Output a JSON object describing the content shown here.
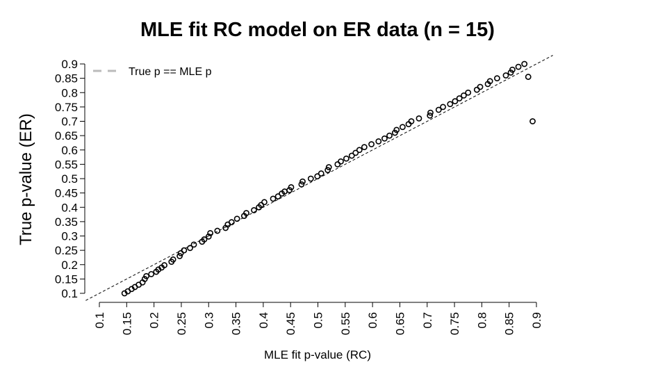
{
  "chart_data": {
    "type": "scatter",
    "title": "MLE fit RC model on ER data (n = 15)",
    "xlabel": "MLE fit p-value (RC)",
    "ylabel": "True p-value (ER)",
    "xlim": [
      0.1,
      0.9
    ],
    "ylim": [
      0.1,
      0.9
    ],
    "x_ticks": [
      0.1,
      0.15,
      0.2,
      0.25,
      0.3,
      0.35,
      0.4,
      0.45,
      0.5,
      0.55,
      0.6,
      0.65,
      0.7,
      0.75,
      0.8,
      0.85,
      0.9
    ],
    "y_ticks": [
      0.1,
      0.15,
      0.2,
      0.25,
      0.3,
      0.35,
      0.4,
      0.45,
      0.5,
      0.55,
      0.6,
      0.65,
      0.7,
      0.75,
      0.8,
      0.85,
      0.9
    ],
    "x_tick_labels": [
      "0.1",
      "0.15",
      "0.2",
      "0.25",
      "0.3",
      "0.35",
      "0.4",
      "0.45",
      "0.5",
      "0.55",
      "0.6",
      "0.65",
      "0.7",
      "0.75",
      "0.8",
      "0.85",
      "0.9"
    ],
    "y_tick_labels": [
      "0.1",
      "0.15",
      "0.2",
      "0.25",
      "0.3",
      "0.35",
      "0.4",
      "0.45",
      "0.5",
      "0.55",
      "0.6",
      "0.65",
      "0.7",
      "0.75",
      "0.8",
      "0.85",
      "0.9"
    ],
    "grid": false,
    "legend": {
      "position": "top-left",
      "entries": [
        {
          "label": "True p == MLE p",
          "style": "dashed",
          "color": "#bbbbbb"
        }
      ]
    },
    "reference_line": {
      "slope": 1,
      "intercept": 0,
      "style": "dashed",
      "color": "#000000"
    },
    "points": {
      "x": [
        0.146,
        0.152,
        0.159,
        0.165,
        0.172,
        0.179,
        0.183,
        0.186,
        0.195,
        0.204,
        0.208,
        0.214,
        0.219,
        0.232,
        0.235,
        0.247,
        0.249,
        0.255,
        0.266,
        0.273,
        0.288,
        0.292,
        0.3,
        0.303,
        0.316,
        0.331,
        0.335,
        0.342,
        0.352,
        0.365,
        0.369,
        0.383,
        0.392,
        0.396,
        0.402,
        0.418,
        0.427,
        0.434,
        0.439,
        0.448,
        0.451,
        0.47,
        0.472,
        0.487,
        0.499,
        0.506,
        0.518,
        0.52,
        0.536,
        0.542,
        0.552,
        0.562,
        0.569,
        0.576,
        0.585,
        0.598,
        0.611,
        0.622,
        0.631,
        0.641,
        0.644,
        0.655,
        0.666,
        0.671,
        0.685,
        0.705,
        0.706,
        0.721,
        0.729,
        0.742,
        0.751,
        0.759,
        0.767,
        0.775,
        0.791,
        0.797,
        0.811,
        0.815,
        0.828,
        0.844,
        0.853,
        0.856,
        0.867,
        0.878,
        0.885,
        0.893
      ],
      "y": [
        0.1,
        0.107,
        0.115,
        0.122,
        0.13,
        0.138,
        0.15,
        0.16,
        0.167,
        0.175,
        0.183,
        0.19,
        0.198,
        0.21,
        0.218,
        0.23,
        0.24,
        0.25,
        0.258,
        0.27,
        0.28,
        0.288,
        0.298,
        0.31,
        0.318,
        0.328,
        0.34,
        0.348,
        0.36,
        0.37,
        0.38,
        0.39,
        0.4,
        0.408,
        0.418,
        0.43,
        0.438,
        0.448,
        0.455,
        0.46,
        0.47,
        0.48,
        0.49,
        0.5,
        0.508,
        0.518,
        0.53,
        0.54,
        0.55,
        0.56,
        0.57,
        0.58,
        0.59,
        0.6,
        0.61,
        0.62,
        0.63,
        0.64,
        0.65,
        0.66,
        0.67,
        0.68,
        0.69,
        0.7,
        0.71,
        0.72,
        0.73,
        0.74,
        0.75,
        0.76,
        0.77,
        0.78,
        0.79,
        0.8,
        0.81,
        0.82,
        0.83,
        0.84,
        0.85,
        0.86,
        0.87,
        0.88,
        0.89,
        0.9,
        0.855,
        0.7
      ]
    }
  }
}
